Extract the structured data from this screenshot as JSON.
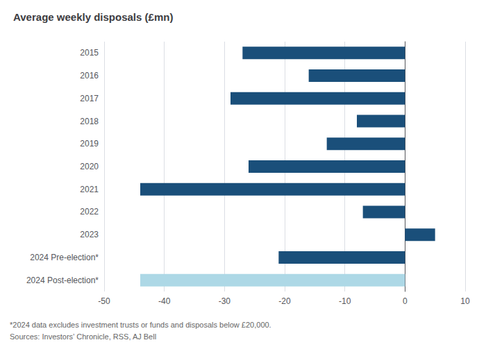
{
  "chart_data": {
    "type": "bar",
    "orientation": "horizontal",
    "title": "Average weekly disposals (£mn)",
    "categories": [
      "2015",
      "2016",
      "2017",
      "2018",
      "2019",
      "2020",
      "2021",
      "2022",
      "2023",
      "2024 Pre-election*",
      "2024 Post-election*"
    ],
    "values": [
      -27,
      -16,
      -29,
      -8,
      -13,
      -26,
      -44,
      -7,
      5,
      -21,
      -44
    ],
    "colors": [
      "#1a4f7a",
      "#1a4f7a",
      "#1a4f7a",
      "#1a4f7a",
      "#1a4f7a",
      "#1a4f7a",
      "#1a4f7a",
      "#1a4f7a",
      "#1a4f7a",
      "#1a4f7a",
      "#add8e6"
    ],
    "xlim": [
      -50,
      10
    ],
    "xticks": [
      -50,
      -40,
      -30,
      -20,
      -10,
      0,
      10
    ],
    "grid": true,
    "annotations": [
      "*2024 data excludes investment trusts or funds and disposals below £20,000.",
      "Sources: Investors’ Chronicle, RSS, AJ Bell"
    ]
  }
}
